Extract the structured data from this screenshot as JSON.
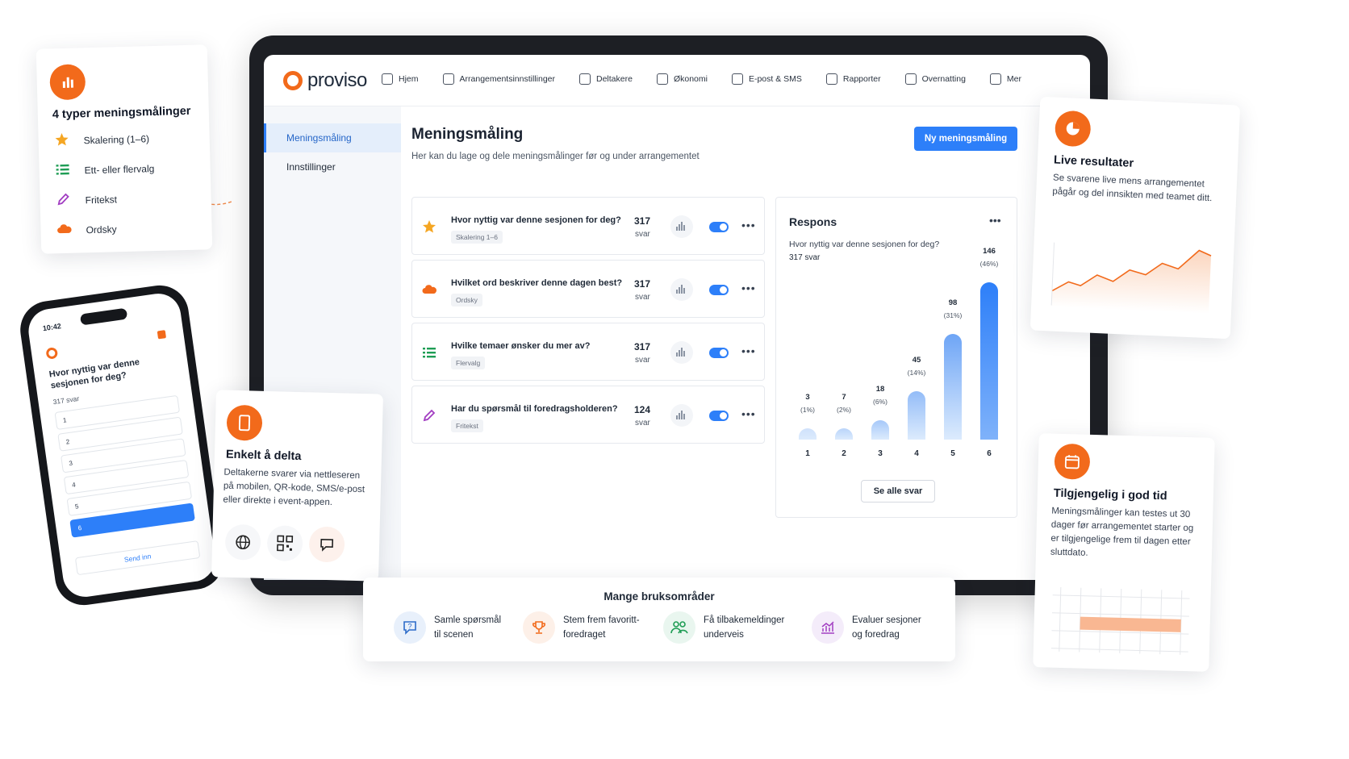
{
  "nav": {
    "brand": "proviso",
    "items": [
      {
        "label": "Hjem",
        "icon": "home-icon"
      },
      {
        "label": "Arrangementsinnstillinger",
        "icon": "calendar-gear-icon"
      },
      {
        "label": "Deltakere",
        "icon": "people-icon"
      },
      {
        "label": "Økonomi",
        "icon": "coins-icon"
      },
      {
        "label": "E-post & SMS",
        "icon": "mail-icon"
      },
      {
        "label": "Rapporter",
        "icon": "report-icon"
      },
      {
        "label": "Overnatting",
        "icon": "bed-icon"
      },
      {
        "label": "Mer",
        "icon": "grid-icon"
      }
    ]
  },
  "sidebar": {
    "items": [
      {
        "label": "Meningsmåling",
        "active": true
      },
      {
        "label": "Innstillinger",
        "active": false
      }
    ]
  },
  "main": {
    "title": "Meningsmåling",
    "subtitle": "Her kan du lage og dele meningsmålinger før og under arrangementet",
    "new_button": "Ny meningsmåling",
    "questions": [
      {
        "text": "Hvor nyttig var denne sesjonen for deg?",
        "tag": "Skalering 1–6",
        "count": "317",
        "unit": "svar",
        "icon": "star-icon"
      },
      {
        "text": "Hvilket ord beskriver denne dagen best?",
        "tag": "Ordsky",
        "count": "317",
        "unit": "svar",
        "icon": "cloud-icon"
      },
      {
        "text": "Hvilke temaer ønsker du mer av?",
        "tag": "Flervalg",
        "count": "317",
        "unit": "svar",
        "icon": "list-icon"
      },
      {
        "text": "Har du spørsmål til foredragsholderen?",
        "tag": "Fritekst",
        "count": "124",
        "unit": "svar",
        "icon": "pencil-icon"
      }
    ]
  },
  "respons": {
    "title": "Respons",
    "question": "Hvor nyttig var denne sesjonen for deg?",
    "count": "317 svar",
    "see_all": "Se alle svar"
  },
  "chart_data": {
    "type": "bar",
    "categories": [
      "1",
      "2",
      "3",
      "4",
      "5",
      "6"
    ],
    "values": [
      3,
      7,
      18,
      45,
      98,
      146
    ],
    "percent_labels": [
      "(1%)",
      "(2%)",
      "(6%)",
      "(14%)",
      "(31%)",
      "(46%)"
    ]
  },
  "card_types": {
    "title": "4 typer meningsmålinger",
    "items": [
      {
        "label": "Skalering (1–6)",
        "icon": "star-icon"
      },
      {
        "label": "Ett- eller flervalg",
        "icon": "list-icon"
      },
      {
        "label": "Fritekst",
        "icon": "pencil-icon"
      },
      {
        "label": "Ordsky",
        "icon": "cloud-icon"
      }
    ]
  },
  "card_share": {
    "title": "Enkelt å delta",
    "text": "Deltakerne svarer via nettleseren på mobilen, QR-kode, SMS/e-post eller direkte i event-appen."
  },
  "card_live": {
    "title": "Live resultater",
    "text": "Se svarene live mens arrangementet pågår og del innsikten med teamet ditt."
  },
  "card_avail": {
    "title": "Tilgjengelig i god tid",
    "text": "Meningsmålinger kan testes ut 30 dager før arrangementet starter og er tilgjengelige frem til dagen etter sluttdato."
  },
  "uses": {
    "title": "Mange bruksområder",
    "items": [
      {
        "line1": "Samle spørsmål",
        "line2": "til scenen",
        "icon": "question-chat-icon"
      },
      {
        "line1": "Stem frem favoritt-",
        "line2": "foredraget",
        "icon": "trophy-icon"
      },
      {
        "line1": "Få tilbakemeldinger",
        "line2": "underveis",
        "icon": "people-icon"
      },
      {
        "line1": "Evaluer sesjoner",
        "line2": "og foredrag",
        "icon": "chart-up-icon"
      }
    ]
  },
  "phone": {
    "time": "10:42",
    "question": "Hvor nyttig var denne sesjonen for deg?",
    "count": "317 svar",
    "options": [
      "1",
      "2",
      "3",
      "4",
      "5",
      "6"
    ],
    "selected": "6",
    "submit": "Send inn"
  },
  "colors": {
    "accent": "#f26a1b",
    "primary": "#2d7ff9"
  }
}
